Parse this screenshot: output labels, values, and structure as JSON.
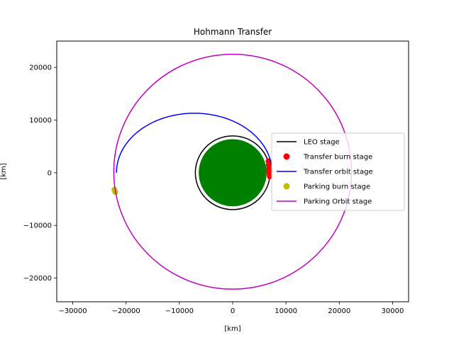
{
  "chart_data": {
    "type": "line",
    "title": "Hohmann Transfer",
    "xlabel": "[km]",
    "ylabel": "[km]",
    "xlim": [
      -33000,
      33000
    ],
    "ylim": [
      -24500,
      25000
    ],
    "xticks": [
      -30000,
      -20000,
      -10000,
      0,
      10000,
      20000,
      30000
    ],
    "yticks": [
      -20000,
      -10000,
      0,
      10000,
      20000
    ],
    "grid": false,
    "legend_position": "center-right",
    "earth": {
      "radius_km": 6371,
      "color": "#008000"
    },
    "series": [
      {
        "name": "LEO stage",
        "kind": "circle",
        "radius_km": 7000,
        "color": "#000000"
      },
      {
        "name": "Transfer burn stage",
        "kind": "points",
        "color": "#ff0000",
        "points": [
          [
            6700,
            2200
          ],
          [
            6750,
            1500
          ],
          [
            6800,
            800
          ],
          [
            6850,
            200
          ],
          [
            6900,
            -300
          ],
          [
            6950,
            -700
          ]
        ]
      },
      {
        "name": "Transfer orbit stage",
        "kind": "arc",
        "color": "#0000ff",
        "a_km": 14600,
        "b_km": 11300,
        "center_x_km": -7200,
        "center_y_km": 0
      },
      {
        "name": "Parking burn stage",
        "kind": "points",
        "color": "#bfbf00",
        "points": [
          [
            -22200,
            -3200
          ],
          [
            -22100,
            -3500
          ],
          [
            -22000,
            -3700
          ]
        ]
      },
      {
        "name": "Parking Orbit stage",
        "kind": "circle",
        "radius_km": 22300,
        "center_y_km": 200,
        "color": "#bf00bf"
      }
    ]
  }
}
